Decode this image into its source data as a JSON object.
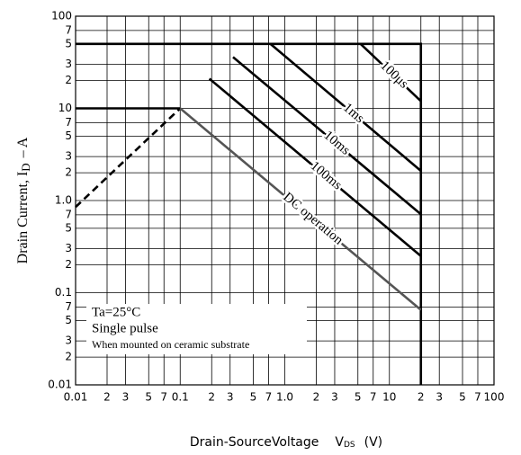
{
  "chart_data": {
    "type": "line",
    "log_x": true,
    "log_y": true,
    "grid": true,
    "xlim": [
      0.01,
      100
    ],
    "ylim": [
      0.01,
      100
    ],
    "xticks": [
      0.01,
      {
        "value": 0.02,
        "label": "2"
      },
      {
        "value": 0.03,
        "label": "3"
      },
      {
        "value": 0.05,
        "label": "5"
      },
      {
        "value": 0.07,
        "label": "7"
      },
      0.1,
      {
        "value": 0.2,
        "label": "2"
      },
      {
        "value": 0.3,
        "label": "3"
      },
      {
        "value": 0.5,
        "label": "5"
      },
      {
        "value": 0.7,
        "label": "7"
      },
      {
        "value": 1,
        "label": "1.0"
      },
      2,
      3,
      5,
      7,
      10,
      {
        "value": 20,
        "label": "2"
      },
      {
        "value": 30,
        "label": "3"
      },
      {
        "value": 50,
        "label": "5"
      },
      {
        "value": 70,
        "label": "7"
      },
      100
    ],
    "yticks": [
      0.01,
      {
        "value": 0.02,
        "label": "2"
      },
      {
        "value": 0.03,
        "label": "3"
      },
      {
        "value": 0.05,
        "label": "5"
      },
      {
        "value": 0.07,
        "label": "7"
      },
      0.1,
      {
        "value": 0.2,
        "label": "2"
      },
      {
        "value": 0.3,
        "label": "3"
      },
      {
        "value": 0.5,
        "label": "5"
      },
      {
        "value": 0.7,
        "label": "7"
      },
      {
        "value": 1,
        "label": "1.0"
      },
      2,
      3,
      5,
      7,
      10,
      {
        "value": 20,
        "label": "2"
      },
      {
        "value": 30,
        "label": "3"
      },
      {
        "value": 50,
        "label": "5"
      },
      {
        "value": 70,
        "label": "7"
      },
      100
    ],
    "ylabel": [
      "Drain Current, I",
      "D",
      "– A"
    ],
    "xlabel": [
      "Drain-SourceVoltage",
      "V",
      "DS",
      "(V)"
    ],
    "annotations": [
      "Ta=25°C",
      "Single pulse",
      "When mounted on ceramic substrate"
    ],
    "series": [
      {
        "color": "#000000",
        "style": "thick",
        "x": [
          0.01,
          20,
          20
        ],
        "values": [
          50,
          50,
          0.01
        ]
      },
      {
        "color": "#000000",
        "style": "thick",
        "x": [
          0.01,
          0.1
        ],
        "values": [
          10,
          10
        ]
      },
      {
        "color": "#000000",
        "style": "dashed",
        "x": [
          0.01,
          0.1
        ],
        "values": [
          0.85,
          10
        ]
      },
      {
        "name": "100μs",
        "color": "#000000",
        "style": "thick",
        "x": [
          5.3,
          20
        ],
        "values": [
          50,
          12
        ]
      },
      {
        "name": "1ms",
        "color": "#000000",
        "style": "thick",
        "x": [
          0.73,
          20
        ],
        "values": [
          50,
          2.1
        ]
      },
      {
        "name": "10ms",
        "color": "#000000",
        "style": "thick",
        "x": [
          0.32,
          20
        ],
        "values": [
          36,
          0.71
        ]
      },
      {
        "name": "100ms",
        "color": "#000000",
        "style": "thick",
        "x": [
          0.19,
          20
        ],
        "values": [
          21,
          0.25
        ]
      },
      {
        "name": "DC operation",
        "color": "#555555",
        "style": "thick",
        "x": [
          0.1,
          20
        ],
        "values": [
          10,
          0.065
        ]
      }
    ]
  }
}
